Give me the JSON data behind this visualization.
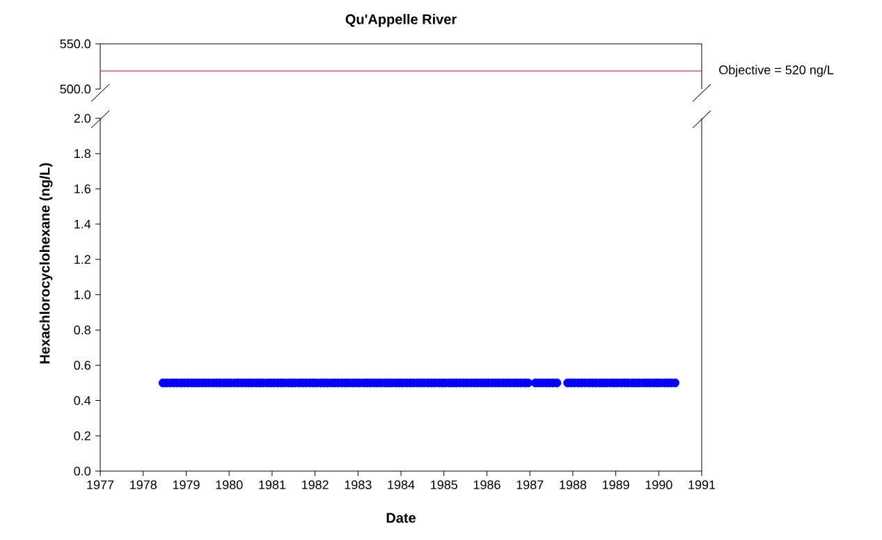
{
  "chart_data": [
    {
      "type": "line",
      "title": "Qu'Appelle River",
      "xlim": [
        1977,
        1991
      ],
      "ylim": [
        500,
        550
      ],
      "yticks": [
        {
          "value": 500,
          "label": "500.0"
        },
        {
          "value": 550,
          "label": "550.0"
        }
      ],
      "tick_labels": "y",
      "ref_lines": [
        {
          "axis": "y",
          "value": 520,
          "label": "Objective = 520 ng/L",
          "color": "#ff0000"
        }
      ]
    },
    {
      "type": "scatter",
      "xlabel": "Date",
      "ylabel": "Hexachlorocyclohexane (ng/L)",
      "marker": "circle",
      "color": "#0000ff",
      "xlim": [
        1977,
        1991
      ],
      "ylim": [
        0,
        2
      ],
      "xticks": [
        1977,
        1978,
        1979,
        1980,
        1981,
        1982,
        1983,
        1984,
        1985,
        1986,
        1987,
        1988,
        1989,
        1990,
        1991
      ],
      "yticks": [
        {
          "value": 0,
          "label": "0.0"
        },
        {
          "value": 0.2,
          "label": "0.2"
        },
        {
          "value": 0.4,
          "label": "0.4"
        },
        {
          "value": 0.6,
          "label": "0.6"
        },
        {
          "value": 0.8,
          "label": "0.8"
        },
        {
          "value": 1.0,
          "label": "1.0"
        },
        {
          "value": 1.2,
          "label": "1.2"
        },
        {
          "value": 1.4,
          "label": "1.4"
        },
        {
          "value": 1.6,
          "label": "1.6"
        },
        {
          "value": 1.8,
          "label": "1.8"
        },
        {
          "value": 2.0,
          "label": "2.0"
        }
      ],
      "x": [
        1978.46,
        1978.54,
        1978.63,
        1978.71,
        1978.79,
        1978.88,
        1978.96,
        1979.04,
        1979.13,
        1979.21,
        1979.29,
        1979.38,
        1979.46,
        1979.54,
        1979.63,
        1979.71,
        1979.79,
        1979.88,
        1979.96,
        1980.04,
        1980.13,
        1980.21,
        1980.29,
        1980.38,
        1980.46,
        1980.54,
        1980.63,
        1980.71,
        1980.79,
        1980.88,
        1980.96,
        1981.04,
        1981.13,
        1981.21,
        1981.29,
        1981.38,
        1981.46,
        1981.54,
        1981.63,
        1981.71,
        1981.79,
        1981.88,
        1981.96,
        1982.04,
        1982.13,
        1982.21,
        1982.29,
        1982.38,
        1982.46,
        1982.54,
        1982.63,
        1982.71,
        1982.79,
        1982.88,
        1982.96,
        1983.04,
        1983.13,
        1983.21,
        1983.29,
        1983.38,
        1983.46,
        1983.54,
        1983.63,
        1983.71,
        1983.79,
        1983.88,
        1983.96,
        1984.04,
        1984.13,
        1984.21,
        1984.29,
        1984.38,
        1984.46,
        1984.54,
        1984.63,
        1984.71,
        1984.79,
        1984.88,
        1984.96,
        1985.04,
        1985.13,
        1985.21,
        1985.29,
        1985.38,
        1985.46,
        1985.54,
        1985.63,
        1985.71,
        1985.79,
        1985.88,
        1985.96,
        1986.04,
        1986.13,
        1986.21,
        1986.29,
        1986.38,
        1986.46,
        1986.54,
        1986.63,
        1986.71,
        1986.79,
        1986.88,
        1986.96,
        1987.13,
        1987.21,
        1987.29,
        1987.38,
        1987.46,
        1987.54,
        1987.63,
        1987.88,
        1987.96,
        1988.04,
        1988.13,
        1988.21,
        1988.29,
        1988.38,
        1988.46,
        1988.54,
        1988.63,
        1988.71,
        1988.79,
        1988.88,
        1988.96,
        1989.04,
        1989.13,
        1989.21,
        1989.29,
        1989.38,
        1989.46,
        1989.54,
        1989.63,
        1989.71,
        1989.79,
        1989.88,
        1989.96,
        1990.04,
        1990.13,
        1990.21,
        1990.29,
        1990.38
      ],
      "values": [
        0.5,
        0.5,
        0.5,
        0.5,
        0.5,
        0.5,
        0.5,
        0.5,
        0.5,
        0.5,
        0.5,
        0.5,
        0.5,
        0.5,
        0.5,
        0.5,
        0.5,
        0.5,
        0.5,
        0.5,
        0.5,
        0.5,
        0.5,
        0.5,
        0.5,
        0.5,
        0.5,
        0.5,
        0.5,
        0.5,
        0.5,
        0.5,
        0.5,
        0.5,
        0.5,
        0.5,
        0.5,
        0.5,
        0.5,
        0.5,
        0.5,
        0.5,
        0.5,
        0.5,
        0.5,
        0.5,
        0.5,
        0.5,
        0.5,
        0.5,
        0.5,
        0.5,
        0.5,
        0.5,
        0.5,
        0.5,
        0.5,
        0.5,
        0.5,
        0.5,
        0.5,
        0.5,
        0.5,
        0.5,
        0.5,
        0.5,
        0.5,
        0.5,
        0.5,
        0.5,
        0.5,
        0.5,
        0.5,
        0.5,
        0.5,
        0.5,
        0.5,
        0.5,
        0.5,
        0.5,
        0.5,
        0.5,
        0.5,
        0.5,
        0.5,
        0.5,
        0.5,
        0.5,
        0.5,
        0.5,
        0.5,
        0.5,
        0.5,
        0.5,
        0.5,
        0.5,
        0.5,
        0.5,
        0.5,
        0.5,
        0.5,
        0.5,
        0.5,
        0.5,
        0.5,
        0.5,
        0.5,
        0.5,
        0.5,
        0.5,
        0.5,
        0.5,
        0.5,
        0.5,
        0.5,
        0.5,
        0.5,
        0.5,
        0.5,
        0.5,
        0.5,
        0.5,
        0.5,
        0.5,
        0.5,
        0.5,
        0.5,
        0.5,
        0.5,
        0.5,
        0.5,
        0.5,
        0.5,
        0.5,
        0.5,
        0.5,
        0.5,
        0.5,
        0.5,
        0.5,
        0.5
      ]
    }
  ]
}
